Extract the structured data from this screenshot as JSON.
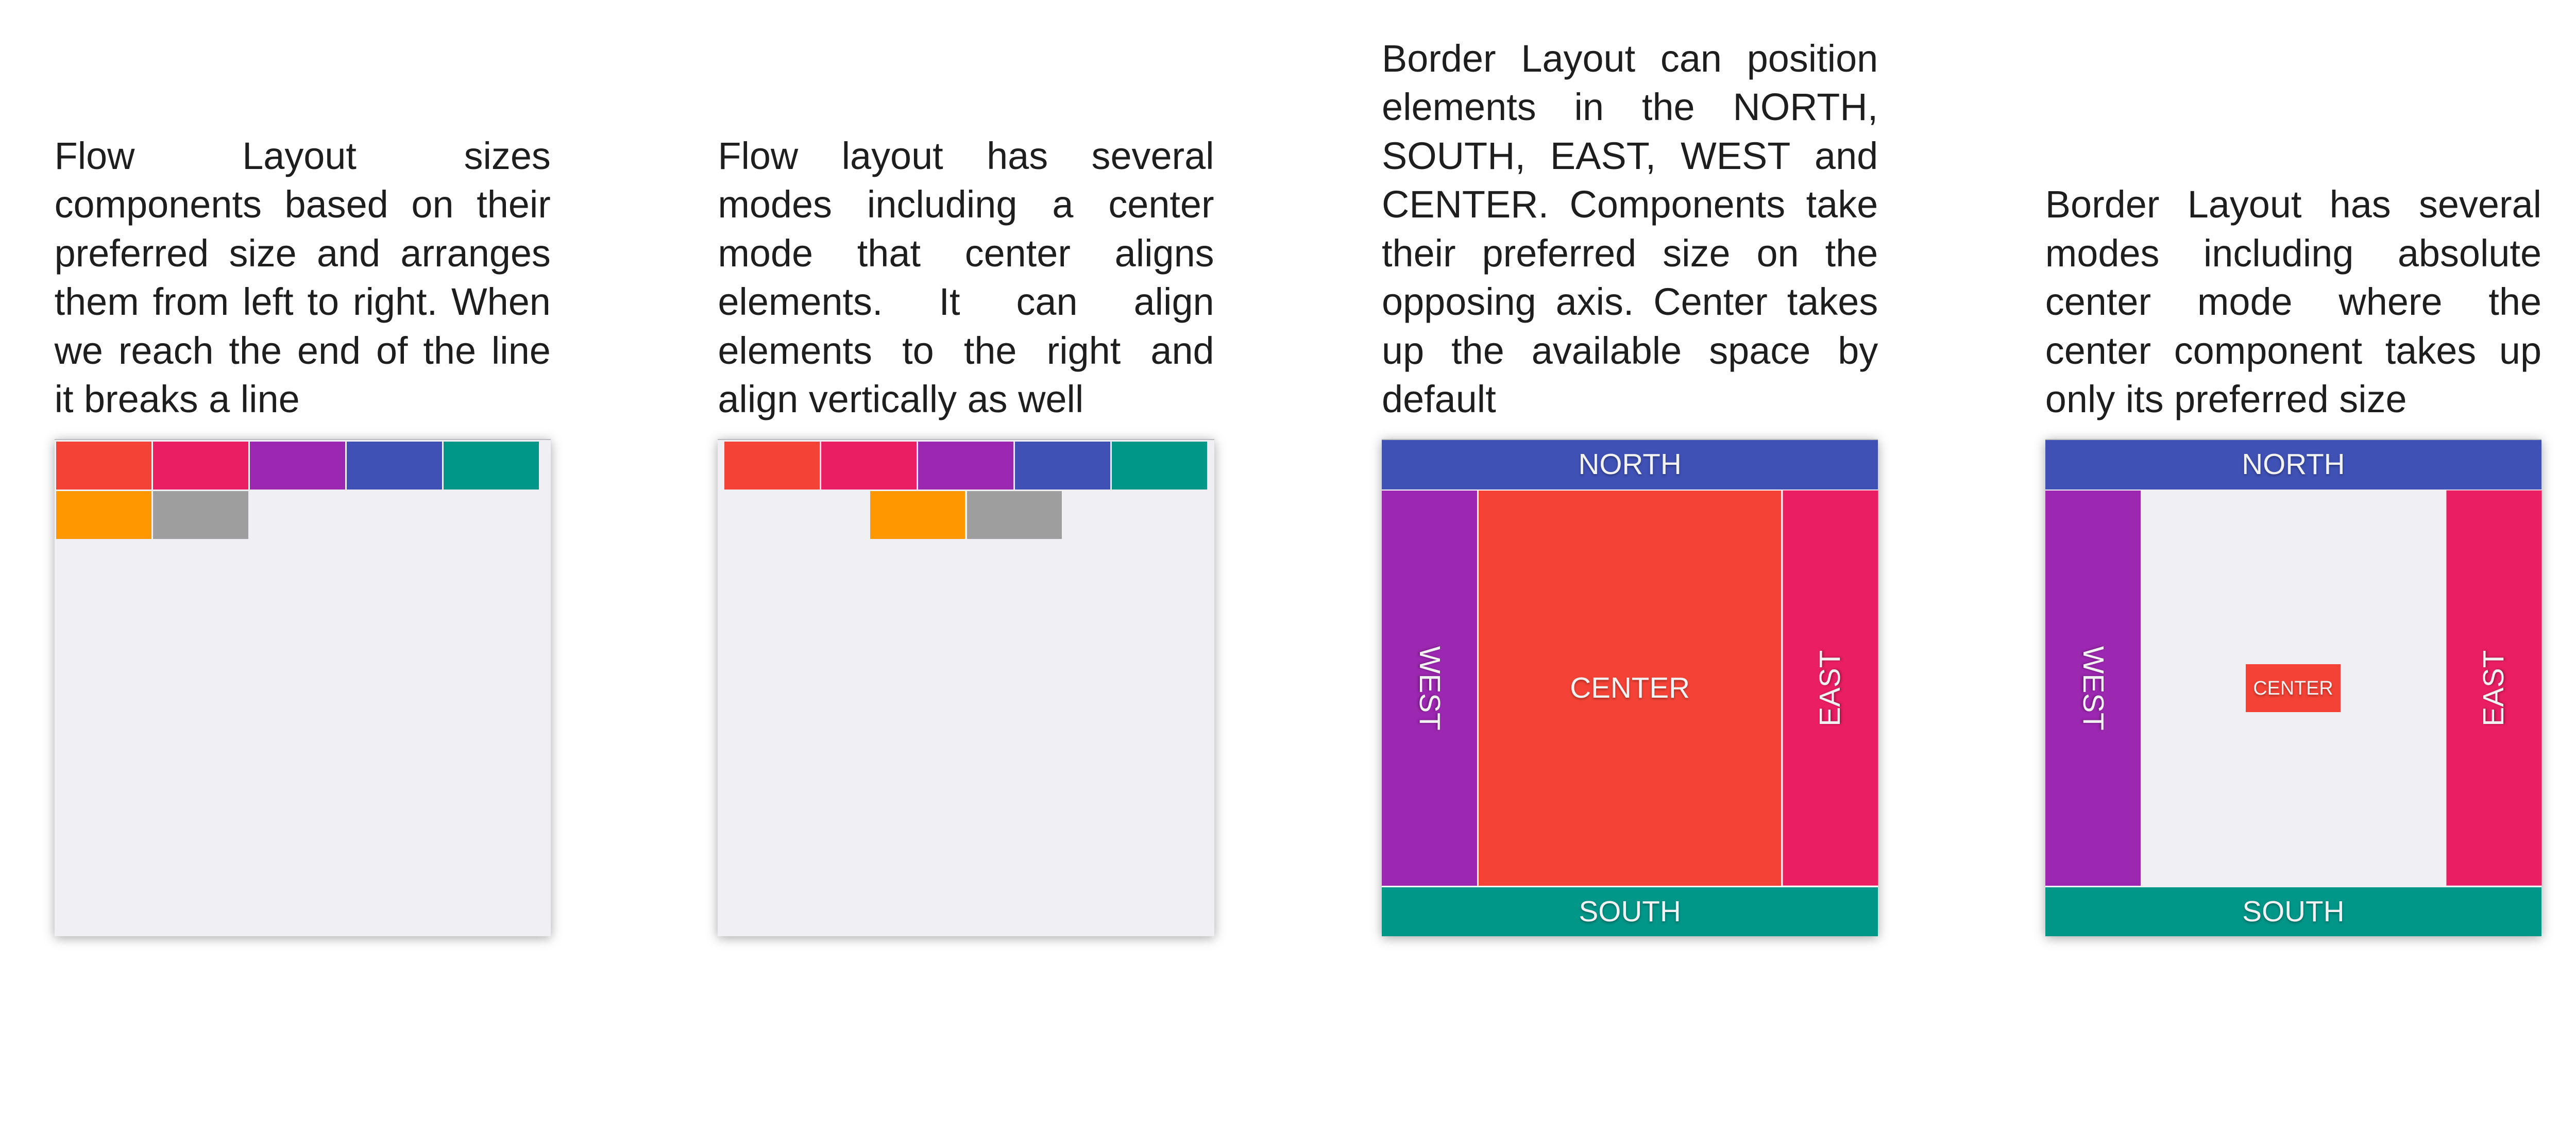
{
  "colors": {
    "red": "#F44336",
    "pink": "#E91E63",
    "purple": "#9C27B0",
    "indigo": "#3F51B5",
    "teal": "#009688",
    "orange": "#FF9800",
    "grey": "#9E9E9E",
    "panel_bg": "#EFEFF4"
  },
  "panels": [
    {
      "description": "Flow Layout sizes components based on their preferred size and arranges them from left to right. When we reach the end of the line it breaks a line"
    },
    {
      "description": "Flow layout has several modes including a center mode that center aligns elements. It can align elements to the right and align vertically as well"
    },
    {
      "description": "Border Layout can position elements in the NORTH, SOUTH, EAST, WEST and CENTER. Components take their preferred size on the opposing axis. Center takes up the available space by default",
      "labels": {
        "north": "NORTH",
        "south": "SOUTH",
        "east": "EAST",
        "west": "WEST",
        "center": "CENTER"
      }
    },
    {
      "description": "Border Layout has several modes including absolute center mode where the center component takes up only its preferred size",
      "labels": {
        "north": "NORTH",
        "south": "SOUTH",
        "east": "EAST",
        "west": "WEST",
        "center": "CENTER"
      }
    }
  ]
}
